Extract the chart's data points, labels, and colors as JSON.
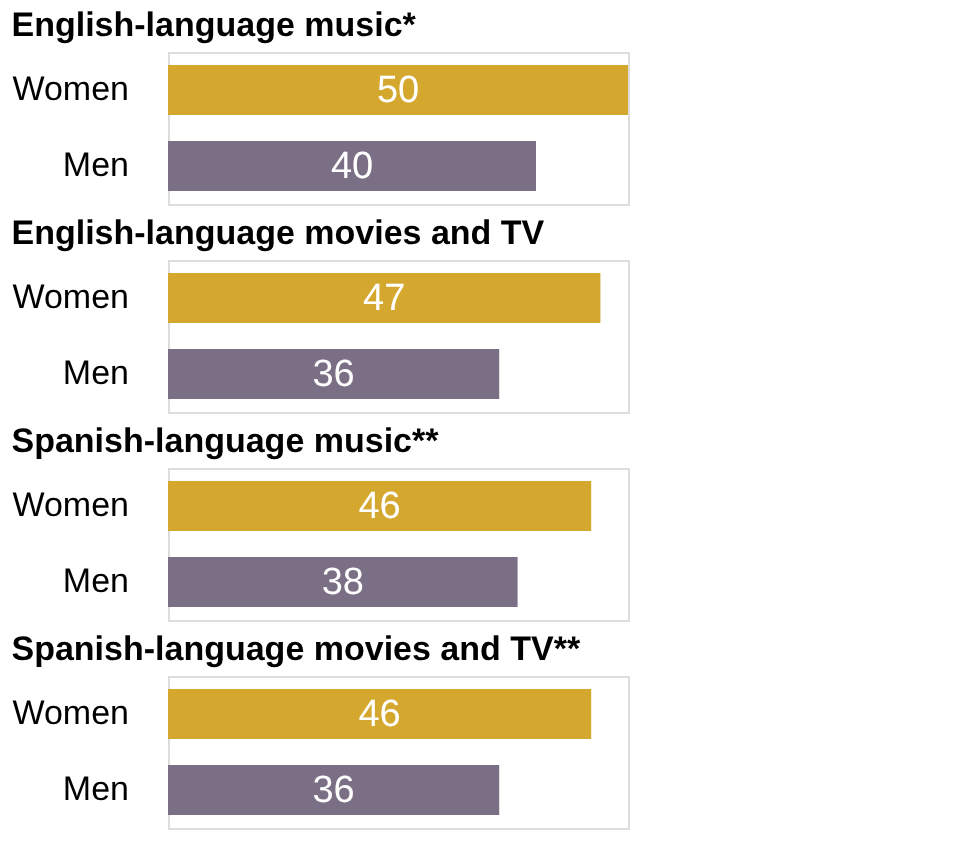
{
  "chart_data": [
    {
      "type": "bar",
      "orientation": "horizontal",
      "title": "English-language music*",
      "categories": [
        "Women",
        "Men"
      ],
      "values": [
        50,
        40
      ],
      "colors": [
        "#d4a82e",
        "#7b6f86"
      ],
      "data_labels": true,
      "tick_labels": "y"
    },
    {
      "type": "bar",
      "orientation": "horizontal",
      "title": "English-language movies and TV",
      "categories": [
        "Women",
        "Men"
      ],
      "values": [
        47,
        36
      ],
      "colors": [
        "#d4a82e",
        "#7b6f86"
      ],
      "data_labels": true,
      "tick_labels": "y"
    },
    {
      "type": "bar",
      "orientation": "horizontal",
      "title": "Spanish-language music**",
      "categories": [
        "Women",
        "Men"
      ],
      "values": [
        46,
        38
      ],
      "colors": [
        "#d4a82e",
        "#7b6f86"
      ],
      "data_labels": true,
      "tick_labels": "y"
    },
    {
      "type": "bar",
      "orientation": "horizontal",
      "title": "Spanish-language movies and TV**",
      "categories": [
        "Women",
        "Men"
      ],
      "values": [
        46,
        36
      ],
      "colors": [
        "#d4a82e",
        "#7b6f86"
      ],
      "data_labels": true,
      "tick_labels": "y"
    }
  ]
}
